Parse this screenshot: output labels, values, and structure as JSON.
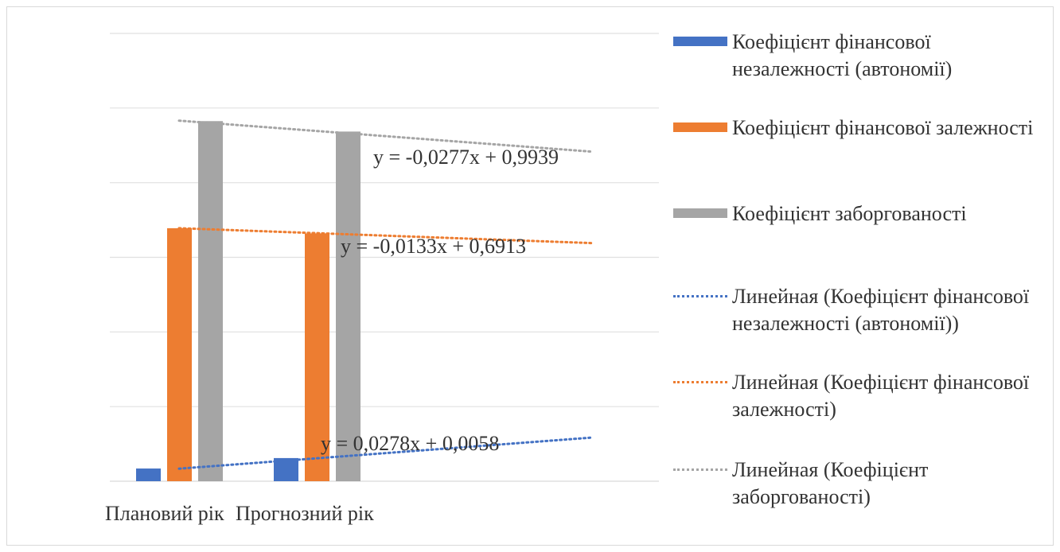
{
  "chart_data": {
    "type": "bar",
    "categories": [
      "Плановий рік",
      "Прогнозний рік"
    ],
    "ylim": [
      0,
      1.2
    ],
    "grid": true,
    "legend_position": "right",
    "series": [
      {
        "name": "Коефіцієнт фінансової незалежності (автономії)",
        "values": [
          0.034,
          0.062
        ],
        "color": "#4472c4"
      },
      {
        "name": "Коефіцієнт фінансової залежності",
        "values": [
          0.678,
          0.664
        ],
        "color": "#ed7d31"
      },
      {
        "name": "Коефіцієнт заборгованості",
        "values": [
          0.965,
          0.937
        ],
        "color": "#a5a5a5"
      }
    ],
    "trendlines": [
      {
        "name": "Линейная (Коефіцієнт фінансової незалежності (автономії))",
        "series": 0,
        "slope": 0.0278,
        "intercept": 0.0058,
        "color": "#4472c4",
        "equation": "y = 0,0278x + 0,0058"
      },
      {
        "name": "Линейная (Коефіцієнт фінансової залежності)",
        "series": 1,
        "slope": -0.0133,
        "intercept": 0.6913,
        "color": "#ed7d31",
        "equation": "y = -0,0133x + 0,6913"
      },
      {
        "name": "Линейная (Коефіцієнт заборгованості)",
        "series": 2,
        "slope": -0.0277,
        "intercept": 0.9939,
        "color": "#a5a5a5",
        "equation": "y = -0,0277x + 0,9939"
      }
    ]
  }
}
